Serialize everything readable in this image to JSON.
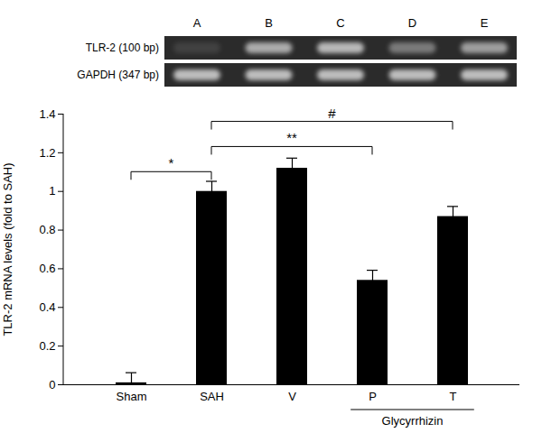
{
  "chart_data": {
    "type": "bar",
    "categories": [
      "Sham",
      "SAH",
      "V",
      "P",
      "T"
    ],
    "values": [
      0.01,
      1.0,
      1.12,
      0.54,
      0.87
    ],
    "errors": [
      0.05,
      0.05,
      0.05,
      0.05,
      0.05
    ],
    "color": "#000000",
    "ylabel": "TLR-2 mRNA levels (fold to SAH)",
    "ylim": [
      0,
      1.4
    ],
    "yticks": [
      0,
      0.2,
      0.4,
      0.6,
      0.8,
      1,
      1.2,
      1.4
    ],
    "grid": false,
    "significance": [
      {
        "from": "Sham",
        "to": "SAH",
        "label": "*",
        "y": 1.1
      },
      {
        "from": "SAH",
        "to": "P",
        "label": "**",
        "y": 1.23
      },
      {
        "from": "SAH",
        "to": "T",
        "label": "#",
        "y": 1.36
      }
    ],
    "group": {
      "label": "Glycyrrhizin",
      "categories": [
        "P",
        "T"
      ]
    },
    "gel": {
      "lanes": [
        "A",
        "B",
        "C",
        "D",
        "E"
      ],
      "rows": [
        "TLR-2 (100 bp)",
        "GAPDH (347 bp)"
      ]
    }
  }
}
